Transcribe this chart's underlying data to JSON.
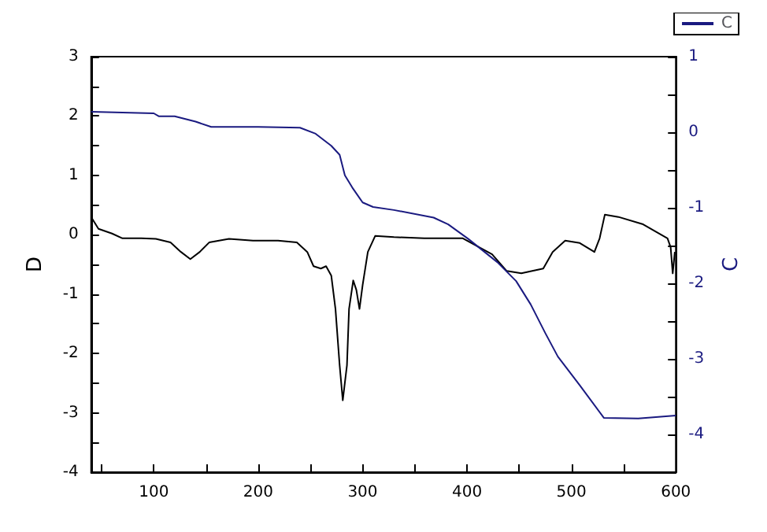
{
  "chart_data": {
    "type": "line",
    "xlabel": null,
    "ylabel": "D",
    "y2label": "C",
    "xlim": [
      40,
      600
    ],
    "xticks": [
      {
        "value": 50,
        "label": null
      },
      100,
      {
        "value": 150,
        "label": null
      },
      200,
      {
        "value": 250,
        "label": null
      },
      300,
      {
        "value": 350,
        "label": null
      },
      400,
      {
        "value": 450,
        "label": null
      },
      500,
      {
        "value": 550,
        "label": null
      },
      600
    ],
    "ylim": [
      -4,
      3
    ],
    "yticks": [
      -4,
      {
        "value": -3.5,
        "label": null
      },
      -3,
      {
        "value": -2.5,
        "label": null
      },
      -2,
      {
        "value": -1.5,
        "label": null
      },
      -1,
      {
        "value": -0.5,
        "label": null
      },
      0,
      {
        "value": 0.5,
        "label": null
      },
      1,
      {
        "value": 1.5,
        "label": null
      },
      2,
      {
        "value": 2.5,
        "label": null
      },
      3
    ],
    "y2lim": [
      -4.5,
      1
    ],
    "y2ticks": [
      {
        "value": -4.5,
        "label": null
      },
      -4,
      {
        "value": -3.5,
        "label": null
      },
      -3,
      {
        "value": -2.5,
        "label": null
      },
      -2,
      {
        "value": -1.5,
        "label": null
      },
      -1,
      {
        "value": -0.5,
        "label": null
      },
      0,
      {
        "value": 0.5,
        "label": null
      },
      1
    ],
    "grid": false,
    "legend": "top right",
    "marker": "none",
    "line_style": "solid",
    "series": [
      {
        "color": "#000000",
        "x": [
          40,
          47,
          60,
          70,
          88,
          102,
          116,
          126,
          135,
          144,
          153,
          172,
          195,
          219,
          237,
          247,
          253,
          260,
          265,
          270,
          274,
          278,
          281,
          285,
          287,
          291,
          294,
          297,
          300,
          305,
          312,
          330,
          359,
          396,
          424,
          438,
          452,
          473,
          482,
          494,
          508,
          522,
          527,
          532,
          545,
          568,
          592,
          595,
          597,
          599
        ],
        "values": [
          0.3,
          0.1,
          0.02,
          -0.06,
          -0.06,
          -0.07,
          -0.13,
          -0.29,
          -0.41,
          -0.29,
          -0.13,
          -0.07,
          -0.1,
          -0.1,
          -0.13,
          -0.29,
          -0.53,
          -0.57,
          -0.53,
          -0.69,
          -1.25,
          -2.2,
          -2.79,
          -2.2,
          -1.25,
          -0.77,
          -0.93,
          -1.25,
          -0.85,
          -0.29,
          -0.02,
          -0.04,
          -0.06,
          -0.06,
          -0.33,
          -0.61,
          -0.65,
          -0.57,
          -0.29,
          -0.1,
          -0.14,
          -0.29,
          -0.06,
          0.34,
          0.3,
          0.18,
          -0.06,
          -0.21,
          -0.65,
          -0.29
        ]
      },
      {
        "name": "C",
        "color": "#1a1a80",
        "axis": "y2",
        "x": [
          40,
          100,
          105,
          120,
          140,
          155,
          200,
          240,
          255,
          270,
          278,
          283,
          290,
          300,
          310,
          330,
          368,
          382,
          401,
          429,
          447,
          461,
          475,
          487,
          508,
          531,
          564,
          600
        ],
        "values": [
          0.27,
          0.25,
          0.21,
          0.21,
          0.14,
          0.07,
          0.07,
          0.06,
          -0.02,
          -0.18,
          -0.3,
          -0.57,
          -0.73,
          -0.93,
          -0.99,
          -1.03,
          -1.13,
          -1.22,
          -1.41,
          -1.72,
          -1.97,
          -2.28,
          -2.66,
          -2.97,
          -3.35,
          -3.78,
          -3.79,
          -3.75
        ]
      }
    ]
  }
}
